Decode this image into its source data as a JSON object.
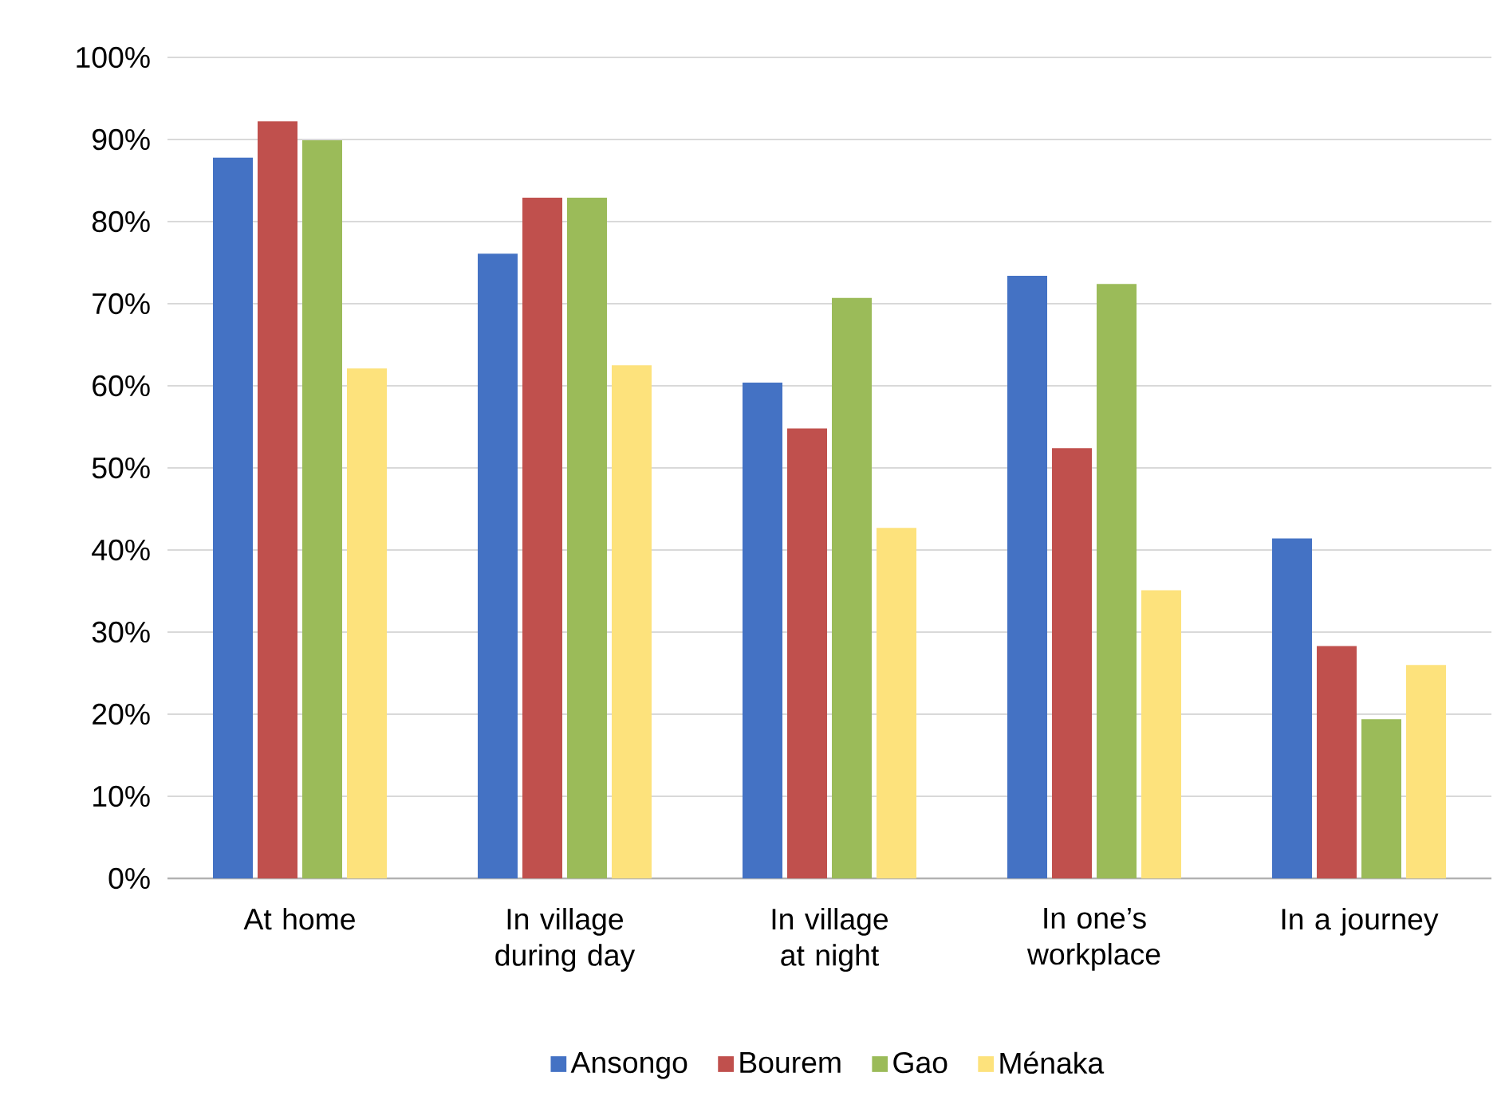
{
  "chart_data": {
    "type": "bar",
    "categories": [
      "At home",
      "In village during day",
      "In village at night",
      "In one’s workplace",
      "In a journey"
    ],
    "series": [
      {
        "name": "Ansongo",
        "color": "#4472c4",
        "values": [
          87.8,
          76.1,
          60.4,
          73.4,
          41.4
        ]
      },
      {
        "name": "Bourem",
        "color": "#c0504d",
        "values": [
          92.2,
          82.9,
          54.8,
          52.4,
          28.3
        ]
      },
      {
        "name": "Gao",
        "color": "#9bbb59",
        "values": [
          89.9,
          82.9,
          70.7,
          72.4,
          19.4
        ]
      },
      {
        "name": "Ménaka",
        "color": "#fde27c",
        "values": [
          62.1,
          62.5,
          42.7,
          35.1,
          26.0
        ]
      }
    ],
    "ylim": [
      0,
      100
    ],
    "yticks": [
      {
        "value": 0,
        "label": "0%"
      },
      {
        "value": 10,
        "label": "10%"
      },
      {
        "value": 20,
        "label": "20%"
      },
      {
        "value": 30,
        "label": "30%"
      },
      {
        "value": 40,
        "label": "40%"
      },
      {
        "value": 50,
        "label": "50%"
      },
      {
        "value": 60,
        "label": "60%"
      },
      {
        "value": 70,
        "label": "70%"
      },
      {
        "value": 80,
        "label": "80%"
      },
      {
        "value": 90,
        "label": "90%"
      },
      {
        "value": 100,
        "label": "100%"
      }
    ],
    "grid": "y",
    "legend": "bottom"
  }
}
